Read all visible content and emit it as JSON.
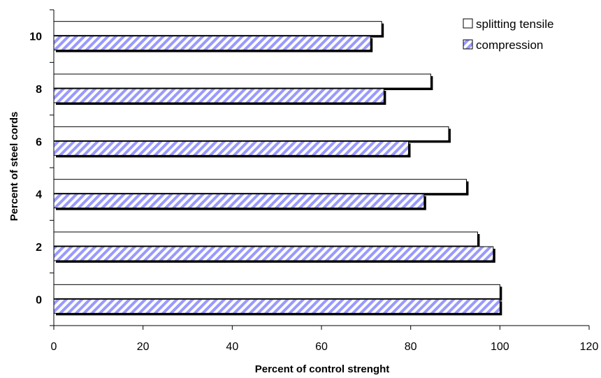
{
  "chart_data": {
    "type": "bar",
    "orientation": "horizontal",
    "xlabel": "Percent of control strenght",
    "ylabel": "Percent of steel cords",
    "xlim": [
      0,
      120
    ],
    "xticks": [
      0,
      20,
      40,
      60,
      80,
      100,
      120
    ],
    "categories": [
      "0",
      "2",
      "4",
      "6",
      "8",
      "10"
    ],
    "series": [
      {
        "name": "splitting tensile",
        "values": [
          100,
          95,
          92.5,
          88.5,
          84.5,
          73.5
        ],
        "pattern": "solid",
        "color": "#ffffff"
      },
      {
        "name": "compression",
        "values": [
          100,
          98.5,
          83,
          79.5,
          74,
          71
        ],
        "pattern": "diagonal-hatch",
        "color": "#9999ff"
      }
    ],
    "legend_position": "top-right",
    "grid": false
  }
}
